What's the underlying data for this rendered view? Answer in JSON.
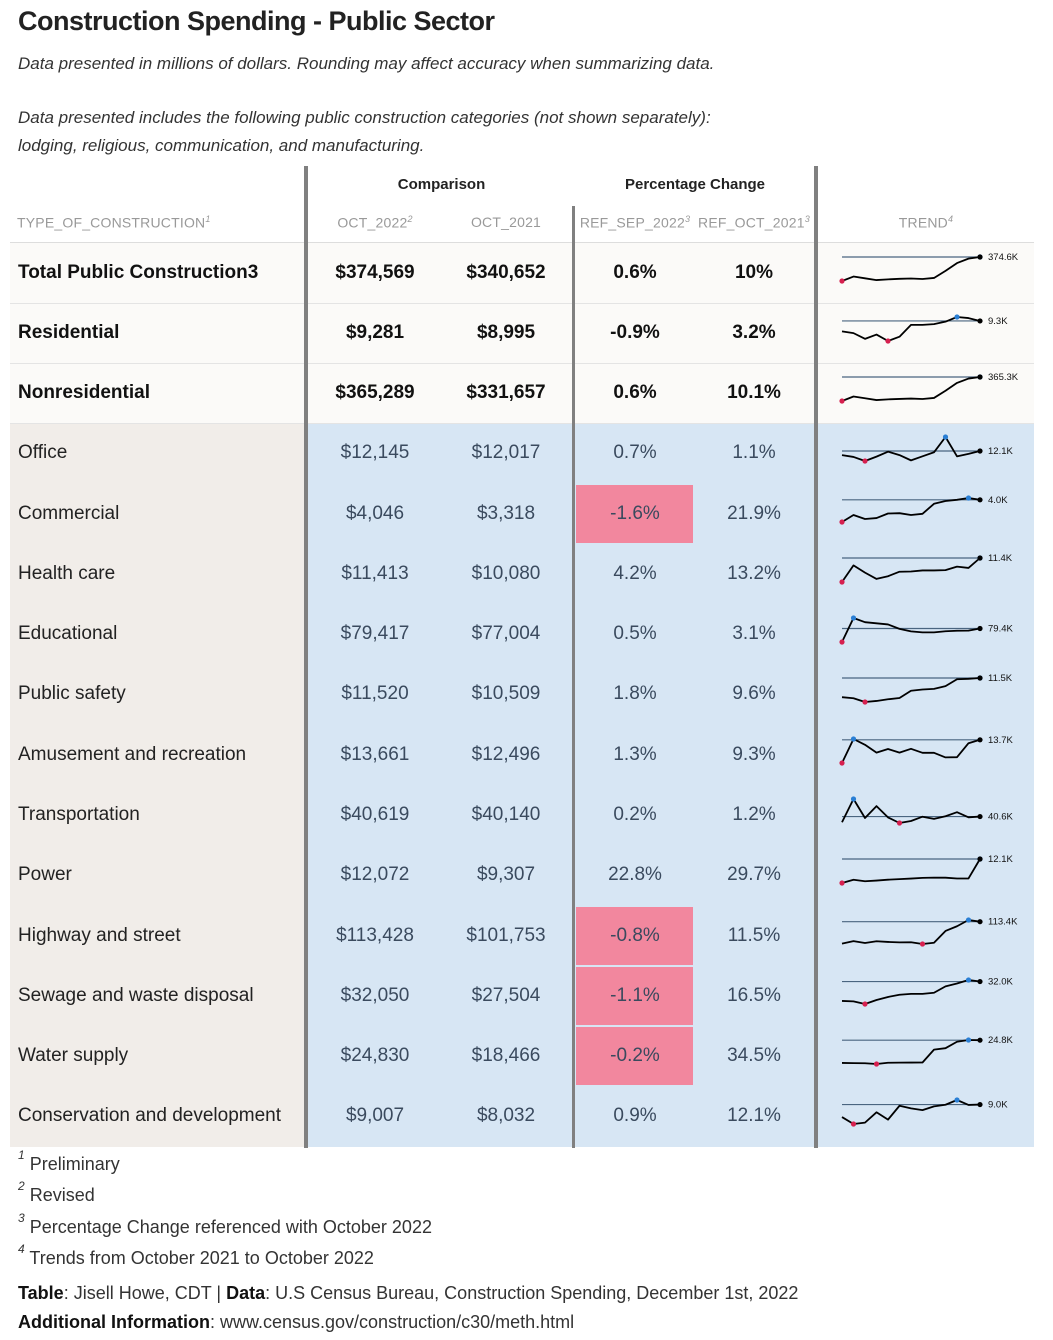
{
  "title": "Construction Spending - Public Sector",
  "subtitle_1": "Data presented in millions of dollars. Rounding may affect accuracy when summarizing data.",
  "subtitle_2": "Data presented includes the following public construction categories (not shown separately):",
  "subtitle_3": "lodging, religious, communication, and manufacturing.",
  "spanners": {
    "comparison": "Comparison",
    "pct": "Percentage Change"
  },
  "columns": {
    "type": "TYPE_OF_CONSTRUCTION",
    "type_note": "1",
    "oct2022": "OCT_2022",
    "oct2022_note": "2",
    "oct2021": "OCT_2021",
    "sep": "REF_SEP_2022",
    "sep_note": "3",
    "octref": "REF_OCT_2021",
    "octref_note": "3",
    "trend": "TREND",
    "trend_note": "4"
  },
  "colors": {
    "negative_highlight": "#f2879e",
    "body_background": "#d7e6f4",
    "stub_background": "#f1ede9",
    "min_point": "#d6204f",
    "max_point": "#2a7fd4",
    "ref_line": "#4a6580"
  },
  "chart_data": {
    "type": "table",
    "rows": [
      {
        "name": "Total Public Construction3",
        "oct2022": "$374,569",
        "oct2021": "$340,652",
        "ref_sep": "0.6%",
        "ref_oct": "10%",
        "summary": true,
        "neg": false,
        "trend_label": "374.6K",
        "trend": [
          340.7,
          347.0,
          344.5,
          342.0,
          343.0,
          343.8,
          344.2,
          343.5,
          345.0,
          355.0,
          366.0,
          372.3,
          374.6
        ]
      },
      {
        "name": "Residential",
        "oct2022": "$9,281",
        "oct2021": "$8,995",
        "ref_sep": "-0.9%",
        "ref_oct": "3.2%",
        "summary": true,
        "neg": false,
        "trend_label": "9.3K",
        "trend": [
          8.99,
          8.94,
          8.78,
          8.9,
          8.72,
          8.84,
          9.17,
          9.17,
          9.19,
          9.26,
          9.39,
          9.36,
          9.28
        ]
      },
      {
        "name": "Nonresidential",
        "oct2022": "$365,289",
        "oct2021": "$331,657",
        "ref_sep": "0.6%",
        "ref_oct": "10.1%",
        "summary": true,
        "neg": false,
        "trend_label": "365.3K",
        "trend": [
          331.7,
          338.0,
          335.5,
          333.0,
          334.0,
          334.6,
          335.1,
          334.5,
          336.0,
          346.0,
          357.0,
          363.1,
          365.3
        ]
      },
      {
        "name": "Office",
        "oct2022": "$12,145",
        "oct2021": "$12,017",
        "ref_sep": "0.7%",
        "ref_oct": "1.1%",
        "summary": false,
        "neg": false,
        "trend_label": "12.1K",
        "trend": [
          12.02,
          11.96,
          11.83,
          11.97,
          12.13,
          12.02,
          11.85,
          11.98,
          12.11,
          12.6,
          11.98,
          12.06,
          12.15
        ]
      },
      {
        "name": "Commercial",
        "oct2022": "$4,046",
        "oct2021": "$3,318",
        "ref_sep": "-1.6%",
        "ref_oct": "21.9%",
        "summary": false,
        "neg": true,
        "trend_label": "4.0K",
        "trend": [
          3.32,
          3.55,
          3.42,
          3.45,
          3.6,
          3.61,
          3.55,
          3.59,
          3.92,
          4.01,
          4.05,
          4.11,
          4.05
        ]
      },
      {
        "name": "Health care",
        "oct2022": "$11,413",
        "oct2021": "$10,080",
        "ref_sep": "4.2%",
        "ref_oct": "13.2%",
        "summary": false,
        "neg": false,
        "trend_label": "11.4K",
        "trend": [
          10.08,
          11.0,
          10.6,
          10.25,
          10.4,
          10.65,
          10.66,
          10.72,
          10.72,
          10.74,
          10.93,
          10.86,
          11.41
        ]
      },
      {
        "name": "Educational",
        "oct2022": "$79,417",
        "oct2021": "$77,004",
        "ref_sep": "0.5%",
        "ref_oct": "3.1%",
        "summary": false,
        "neg": false,
        "trend_label": "79.4K",
        "trend": [
          77.0,
          81.3,
          80.55,
          80.35,
          80.15,
          79.35,
          78.9,
          78.72,
          78.72,
          78.92,
          79.02,
          79.04,
          79.42
        ]
      },
      {
        "name": "Public safety",
        "oct2022": "$11,520",
        "oct2021": "$10,509",
        "ref_sep": "1.8%",
        "ref_oct": "9.6%",
        "summary": false,
        "neg": false,
        "trend_label": "11.5K",
        "trend": [
          10.6,
          10.55,
          10.37,
          10.42,
          10.5,
          10.56,
          10.91,
          10.97,
          11.0,
          11.13,
          11.46,
          11.48,
          11.52
        ]
      },
      {
        "name": "Amusement and recreation",
        "oct2022": "$13,661",
        "oct2021": "$12,496",
        "ref_sep": "1.3%",
        "ref_oct": "9.3%",
        "summary": false,
        "neg": false,
        "trend_label": "13.7K",
        "trend": [
          12.5,
          13.7,
          13.41,
          13.02,
          13.2,
          13.02,
          13.21,
          13.01,
          13.01,
          12.78,
          12.79,
          13.49,
          13.66
        ]
      },
      {
        "name": "Transportation",
        "oct2022": "$40,619",
        "oct2021": "$40,140",
        "ref_sep": "0.2%",
        "ref_oct": "1.2%",
        "summary": false,
        "neg": false,
        "trend_label": "40.6K",
        "trend": [
          40.14,
          42.1,
          40.5,
          41.5,
          40.55,
          40.08,
          40.25,
          40.61,
          40.43,
          40.65,
          40.99,
          40.56,
          40.62
        ]
      },
      {
        "name": "Power",
        "oct2022": "$12,072",
        "oct2021": "$9,307",
        "ref_sep": "22.8%",
        "ref_oct": "29.7%",
        "summary": false,
        "neg": false,
        "trend_label": "12.1K",
        "trend": [
          9.31,
          9.68,
          9.51,
          9.59,
          9.69,
          9.76,
          9.82,
          9.9,
          9.93,
          9.92,
          9.83,
          9.83,
          12.07
        ]
      },
      {
        "name": "Highway and street",
        "oct2022": "$113,428",
        "oct2021": "$101,753",
        "ref_sep": "-0.8%",
        "ref_oct": "11.5%",
        "summary": false,
        "neg": true,
        "trend_label": "113.4K",
        "trend": [
          101.75,
          103.1,
          102.1,
          103.0,
          102.65,
          102.4,
          102.5,
          101.55,
          102.2,
          108.5,
          111.0,
          114.33,
          113.43
        ]
      },
      {
        "name": "Sewage and waste disposal",
        "oct2022": "$32,050",
        "oct2021": "$27,504",
        "ref_sep": "-1.1%",
        "ref_oct": "16.5%",
        "summary": false,
        "neg": true,
        "trend_label": "32.0K",
        "trend": [
          27.65,
          27.55,
          26.95,
          27.85,
          28.55,
          29.05,
          29.25,
          29.25,
          29.5,
          30.95,
          31.6,
          32.4,
          32.05
        ]
      },
      {
        "name": "Water supply",
        "oct2022": "$24,830",
        "oct2021": "$18,466",
        "ref_sep": "-0.2%",
        "ref_oct": "34.5%",
        "summary": false,
        "neg": true,
        "trend_label": "24.8K",
        "trend": [
          18.5,
          18.45,
          18.4,
          18.2,
          18.55,
          18.58,
          18.6,
          18.62,
          22.2,
          22.6,
          24.4,
          24.88,
          24.83
        ]
      },
      {
        "name": "Conservation and development",
        "oct2022": "$9,007",
        "oct2021": "$8,032",
        "ref_sep": "0.9%",
        "ref_oct": "12.1%",
        "summary": false,
        "neg": false,
        "trend_label": "9.0K",
        "trend": [
          8.38,
          8.03,
          8.1,
          8.62,
          8.25,
          8.95,
          8.82,
          8.73,
          8.92,
          9.0,
          9.24,
          8.99,
          9.01
        ]
      }
    ]
  },
  "footnotes": [
    {
      "n": "1",
      "text": "Preliminary"
    },
    {
      "n": "2",
      "text": "Revised"
    },
    {
      "n": "3",
      "text": "Percentage Change referenced with October 2022"
    },
    {
      "n": "4",
      "text": "Trends from October 2021 to October 2022"
    }
  ],
  "source": {
    "table_label": "Table",
    "table_value": ": Jisell Howe, CDT | ",
    "data_label": "Data",
    "data_value": ": U.S Census Bureau, Construction Spending, December 1st, 2022",
    "info_label": "Additional Information",
    "info_value": ": www.census.gov/construction/c30/meth.html"
  }
}
